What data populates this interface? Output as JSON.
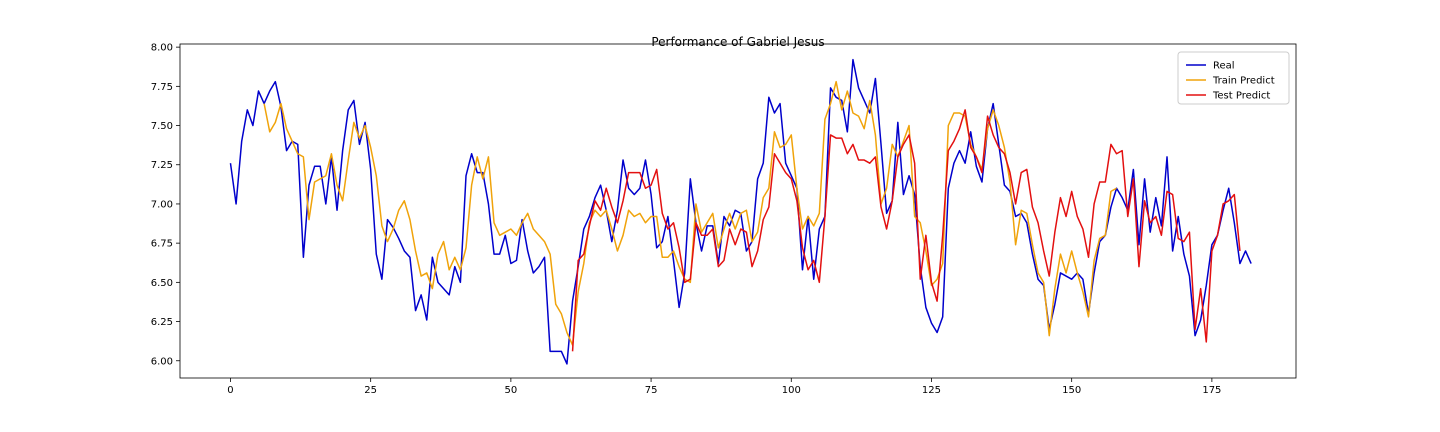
{
  "chart_data": {
    "type": "line",
    "title": "Performance of Gabriel Jesus",
    "xlabel": "",
    "ylabel": "",
    "xlim": [
      -9,
      190
    ],
    "ylim": [
      5.89,
      8.02
    ],
    "xticks": [
      0,
      25,
      50,
      75,
      100,
      125,
      150,
      175
    ],
    "yticks": [
      6.0,
      6.25,
      6.5,
      6.75,
      7.0,
      7.25,
      7.5,
      7.75,
      8.0
    ],
    "ytick_labels": [
      "6.00",
      "6.25",
      "6.50",
      "6.75",
      "7.00",
      "7.25",
      "7.50",
      "7.75",
      "8.00"
    ],
    "grid": false,
    "legend_position": "top-right",
    "series": [
      {
        "name": "Real",
        "color": "#0000cc",
        "x_start": 0,
        "values": [
          7.26,
          7.0,
          7.4,
          7.6,
          7.5,
          7.72,
          7.64,
          7.72,
          7.78,
          7.62,
          7.34,
          7.4,
          7.38,
          6.66,
          7.12,
          7.24,
          7.24,
          7.0,
          7.3,
          6.96,
          7.34,
          7.6,
          7.66,
          7.38,
          7.52,
          7.22,
          6.68,
          6.52,
          6.9,
          6.85,
          6.78,
          6.7,
          6.66,
          6.32,
          6.42,
          6.26,
          6.66,
          6.5,
          6.46,
          6.42,
          6.6,
          6.5,
          7.18,
          7.32,
          7.2,
          7.2,
          7.0,
          6.68,
          6.68,
          6.8,
          6.62,
          6.64,
          6.9,
          6.7,
          6.56,
          6.6,
          6.66,
          6.06,
          6.06,
          6.06,
          5.98,
          6.38,
          6.6,
          6.84,
          6.92,
          7.04,
          7.12,
          6.96,
          6.76,
          6.96,
          7.28,
          7.1,
          7.06,
          7.1,
          7.28,
          7.06,
          6.72,
          6.76,
          6.92,
          6.64,
          6.34,
          6.56,
          7.16,
          6.88,
          6.7,
          6.86,
          6.86,
          6.62,
          6.92,
          6.86,
          6.96,
          6.94,
          6.7,
          6.76,
          7.16,
          7.26,
          7.68,
          7.58,
          7.64,
          7.26,
          7.18,
          7.1,
          6.58,
          6.92,
          6.52,
          6.84,
          6.92,
          7.74,
          7.68,
          7.66,
          7.46,
          7.92,
          7.74,
          7.66,
          7.58,
          7.8,
          7.38,
          6.94,
          7.02,
          7.52,
          7.06,
          7.18,
          7.06,
          6.6,
          6.34,
          6.24,
          6.18,
          6.28,
          7.1,
          7.26,
          7.34,
          7.26,
          7.46,
          7.24,
          7.14,
          7.48,
          7.64,
          7.38,
          7.12,
          7.08,
          6.92,
          6.94,
          6.88,
          6.68,
          6.52,
          6.48,
          6.2,
          6.36,
          6.56,
          6.54,
          6.52,
          6.56,
          6.52,
          6.3,
          6.56,
          6.76,
          6.8,
          6.98,
          7.1,
          7.04,
          6.96,
          7.22,
          6.74,
          7.16,
          6.82,
          7.04,
          6.86,
          7.3,
          6.7,
          6.92,
          6.68,
          6.54,
          6.16,
          6.26,
          6.48,
          6.74,
          6.8,
          6.96,
          7.1,
          6.88,
          6.62,
          6.7,
          6.62
        ]
      },
      {
        "name": "Train Predict",
        "color": "#f0a30a",
        "x_start": 6,
        "values": [
          7.64,
          7.46,
          7.52,
          7.64,
          7.48,
          7.4,
          7.32,
          7.3,
          6.9,
          7.14,
          7.16,
          7.18,
          7.32,
          7.12,
          7.02,
          7.28,
          7.52,
          7.42,
          7.5,
          7.36,
          7.18,
          6.86,
          6.76,
          6.84,
          6.96,
          7.02,
          6.9,
          6.7,
          6.54,
          6.56,
          6.46,
          6.68,
          6.76,
          6.58,
          6.66,
          6.58,
          6.72,
          7.12,
          7.3,
          7.16,
          7.3,
          6.88,
          6.8,
          6.82,
          6.84,
          6.8,
          6.88,
          6.94,
          6.84,
          6.8,
          6.76,
          6.68,
          6.36,
          6.3,
          6.18,
          6.1,
          6.44,
          6.62,
          6.88,
          6.96,
          6.92,
          6.96,
          6.84,
          6.7,
          6.8,
          6.96,
          6.92,
          6.94,
          6.88,
          6.92,
          6.92,
          6.66,
          6.66,
          6.7,
          6.6,
          6.52,
          6.5,
          7.0,
          6.82,
          6.88,
          6.94,
          6.72,
          6.84,
          6.94,
          6.84,
          6.94,
          6.96,
          6.76,
          6.82,
          7.04,
          7.1,
          7.46,
          7.36,
          7.38,
          7.44,
          7.1,
          6.84,
          6.92,
          6.86,
          6.94,
          7.54,
          7.64,
          7.78,
          7.6,
          7.72,
          7.58,
          7.56,
          7.48,
          7.66,
          7.44,
          7.0,
          7.1,
          7.38,
          7.3,
          7.4,
          7.5,
          6.92,
          6.88,
          6.7,
          6.48,
          6.52,
          6.62,
          7.5,
          7.58,
          7.58,
          7.56,
          7.38,
          7.3,
          7.22,
          7.48,
          7.6,
          7.5,
          7.36,
          7.14,
          6.74,
          6.96,
          6.94,
          6.74,
          6.56,
          6.5,
          6.16,
          6.46,
          6.68,
          6.56,
          6.7,
          6.56,
          6.44,
          6.28,
          6.64,
          6.78,
          6.8,
          7.08,
          7.1
        ]
      },
      {
        "name": "Test Predict",
        "color": "#e31010",
        "x_start": 61,
        "values": [
          6.06,
          6.64,
          6.68,
          6.86,
          7.02,
          6.96,
          7.1,
          6.98,
          6.88,
          7.02,
          7.2,
          7.2,
          7.2,
          7.1,
          7.12,
          7.22,
          6.94,
          6.84,
          6.88,
          6.72,
          6.5,
          6.52,
          6.88,
          6.8,
          6.8,
          6.84,
          6.6,
          6.64,
          6.84,
          6.74,
          6.84,
          6.82,
          6.6,
          6.7,
          6.9,
          6.98,
          7.32,
          7.26,
          7.2,
          7.16,
          7.02,
          6.72,
          6.58,
          6.64,
          6.5,
          6.92,
          7.44,
          7.42,
          7.42,
          7.32,
          7.38,
          7.28,
          7.28,
          7.26,
          7.3,
          6.98,
          6.84,
          7.02,
          7.3,
          7.38,
          7.44,
          7.26,
          6.52,
          6.8,
          6.5,
          6.38,
          6.8,
          7.34,
          7.4,
          7.48,
          7.6,
          7.36,
          7.3,
          7.2,
          7.56,
          7.44,
          7.36,
          7.32,
          7.2,
          7.0,
          7.2,
          7.22,
          6.98,
          6.88,
          6.7,
          6.54,
          6.82,
          7.04,
          6.92,
          7.08,
          6.92,
          6.84,
          6.66,
          7.0,
          7.14,
          7.14,
          7.38,
          7.32,
          7.34,
          6.92,
          7.16,
          6.6,
          7.02,
          6.88,
          6.92,
          6.8,
          7.08,
          7.06,
          6.78,
          6.76,
          6.82,
          6.2,
          6.46,
          6.12,
          6.7,
          6.8,
          7.0,
          7.02,
          7.06,
          6.7
        ]
      }
    ]
  }
}
